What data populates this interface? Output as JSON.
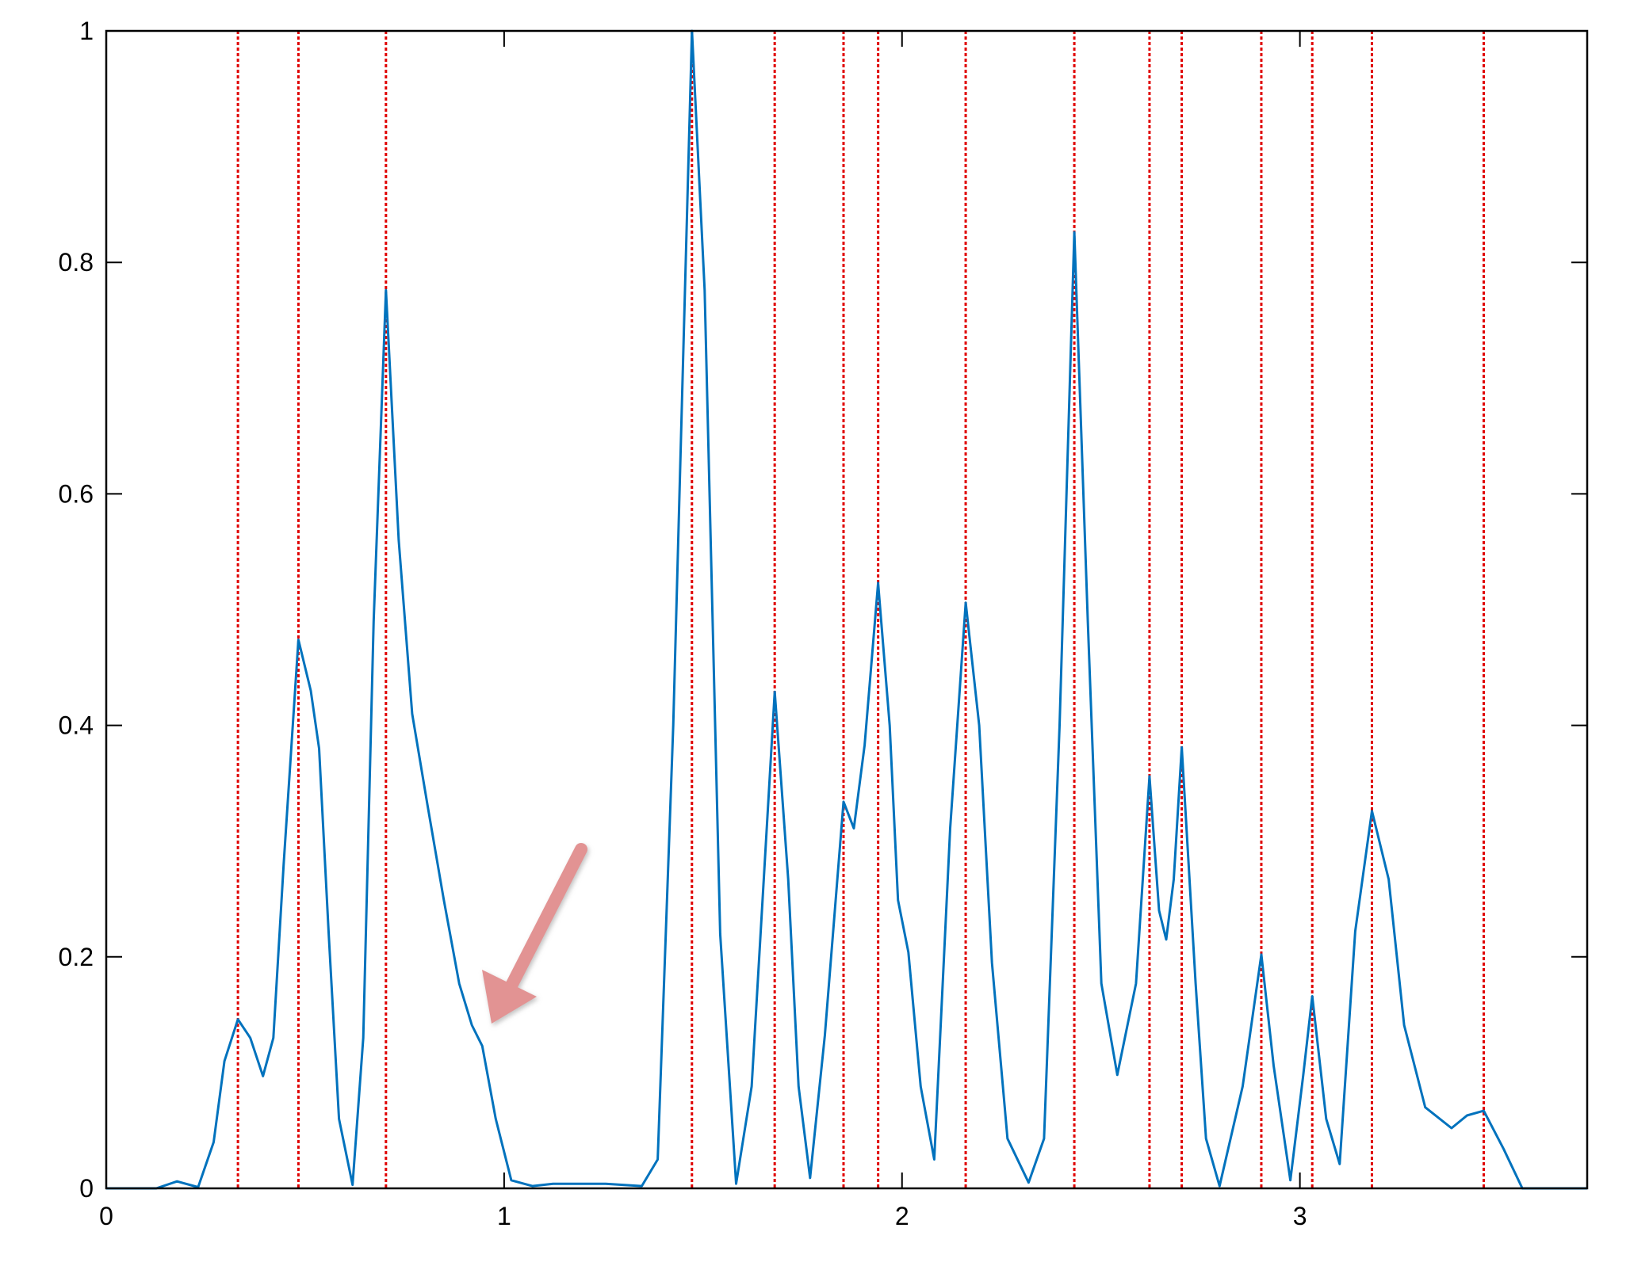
{
  "chart_data": {
    "type": "line",
    "x": [
      0,
      0.126,
      0.178,
      0.231,
      0.27,
      0.297,
      0.331,
      0.362,
      0.394,
      0.42,
      0.446,
      0.483,
      0.514,
      0.535,
      0.559,
      0.585,
      0.619,
      0.646,
      0.672,
      0.703,
      0.735,
      0.769,
      0.808,
      0.848,
      0.887,
      0.919,
      0.945,
      0.979,
      1.018,
      1.071,
      1.123,
      1.255,
      1.346,
      1.386,
      1.425,
      1.472,
      1.504,
      1.543,
      1.583,
      1.622,
      1.68,
      1.714,
      1.74,
      1.769,
      1.806,
      1.853,
      1.879,
      1.906,
      1.94,
      1.969,
      1.99,
      2.016,
      2.047,
      2.081,
      2.121,
      2.16,
      2.194,
      2.226,
      2.265,
      2.318,
      2.357,
      2.396,
      2.433,
      2.467,
      2.501,
      2.541,
      2.588,
      2.622,
      2.646,
      2.664,
      2.683,
      2.703,
      2.738,
      2.764,
      2.798,
      2.856,
      2.903,
      2.934,
      2.976,
      3.008,
      3.031,
      3.066,
      3.1,
      3.139,
      3.181,
      3.223,
      3.262,
      3.315,
      3.381,
      3.42,
      3.462,
      3.512,
      3.559,
      3.722
    ],
    "series": [
      {
        "color": "#0072bd",
        "values": [
          0,
          0,
          0.006,
          0.001,
          0.04,
          0.11,
          0.146,
          0.13,
          0.097,
          0.13,
          0.28,
          0.474,
          0.43,
          0.38,
          0.22,
          0.06,
          0.003,
          0.13,
          0.49,
          0.776,
          0.56,
          0.41,
          0.33,
          0.25,
          0.177,
          0.141,
          0.123,
          0.06,
          0.007,
          0.002,
          0.004,
          0.004,
          0.002,
          0.025,
          0.4,
          1.0,
          0.776,
          0.22,
          0.004,
          0.088,
          0.429,
          0.267,
          0.088,
          0.009,
          0.132,
          0.334,
          0.311,
          0.383,
          0.523,
          0.4,
          0.249,
          0.204,
          0.088,
          0.025,
          0.311,
          0.506,
          0.4,
          0.195,
          0.043,
          0.005,
          0.043,
          0.4,
          0.826,
          0.49,
          0.177,
          0.098,
          0.177,
          0.356,
          0.24,
          0.215,
          0.267,
          0.381,
          0.177,
          0.043,
          0.002,
          0.088,
          0.202,
          0.106,
          0.007,
          0.097,
          0.166,
          0.06,
          0.021,
          0.222,
          0.326,
          0.267,
          0.141,
          0.07,
          0.052,
          0.063,
          0.067,
          0.034,
          0,
          0
        ]
      }
    ],
    "vlines": {
      "color": "#e00000",
      "x": [
        0.331,
        0.483,
        0.703,
        1.472,
        1.68,
        1.853,
        1.94,
        2.16,
        2.433,
        2.622,
        2.703,
        2.903,
        3.031,
        3.181,
        3.462
      ]
    },
    "xlim": [
      0,
      3.722
    ],
    "ylim": [
      0,
      1
    ],
    "xticks": [
      0,
      1,
      2,
      3
    ],
    "yticks": [
      0,
      0.2,
      0.4,
      0.6,
      0.8,
      1
    ]
  }
}
